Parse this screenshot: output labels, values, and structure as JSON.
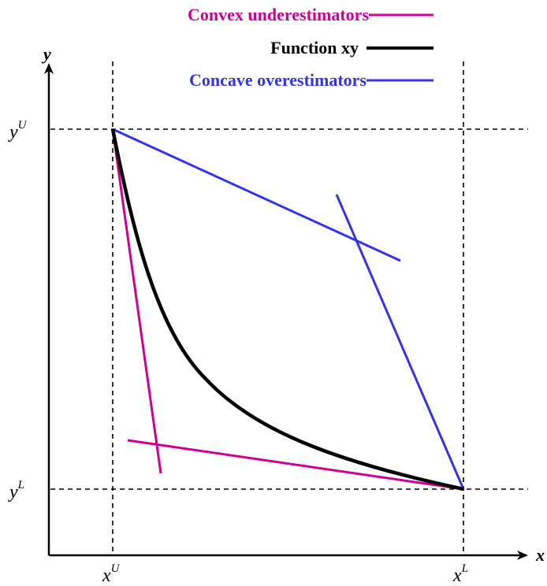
{
  "colors": {
    "function": "#000000",
    "underestimators": "#cc0099",
    "overestimators": "#3333ee",
    "axes": "#000000"
  },
  "legend": {
    "underestimators": "Convex underestimators",
    "function": "Function xy",
    "overestimators": "Concave overestimators"
  },
  "axes": {
    "x_label": "x",
    "y_label": "y",
    "x_ticks": [
      {
        "base": "x",
        "sup": "U"
      },
      {
        "base": "x",
        "sup": "L"
      }
    ],
    "y_ticks": [
      {
        "base": "y",
        "sup": "U"
      },
      {
        "base": "y",
        "sup": "L"
      }
    ]
  }
}
